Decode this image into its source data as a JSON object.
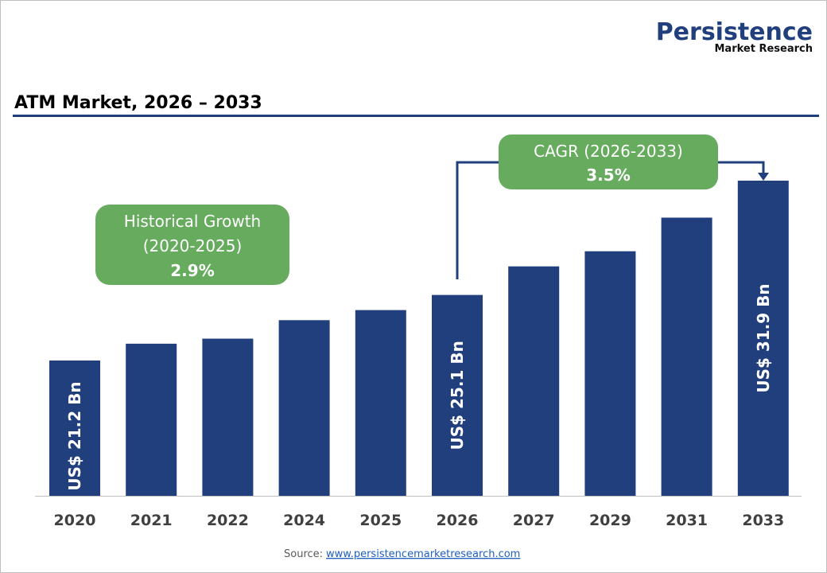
{
  "logo": {
    "name": "Persistence",
    "tagline": "Market Research"
  },
  "chart_data": {
    "type": "bar",
    "title": "ATM Market, 2026 – 2033",
    "categories": [
      "2020",
      "2021",
      "2022",
      "2024",
      "2025",
      "2026",
      "2027",
      "2029",
      "2031",
      "2033"
    ],
    "values": [
      21.2,
      22.2,
      22.5,
      23.6,
      24.2,
      25.1,
      26.8,
      27.7,
      29.7,
      31.9
    ],
    "data_labels": {
      "0": "US$ 21.2 Bn",
      "5": "US$ 25.1 Bn",
      "9": "US$ 31.9 Bn"
    },
    "xlabel": "",
    "ylabel": "",
    "grid": false,
    "bar_color": "#213f7d",
    "annotations": {
      "historical": {
        "line1": "Historical Growth",
        "line2": "(2020-2025)",
        "value": "2.9%"
      },
      "cagr": {
        "line1": "CAGR (2026-2033)",
        "value": "3.5%"
      },
      "box_color": "#66ab5e"
    }
  },
  "source": {
    "label": "Source:",
    "link": "www.persistencemarketresearch.com"
  }
}
